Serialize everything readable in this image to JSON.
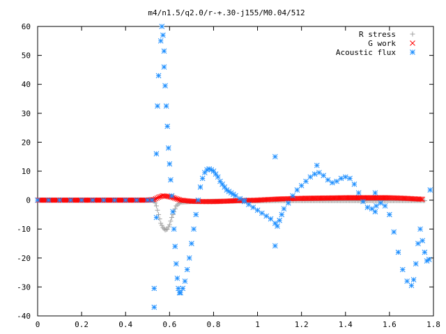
{
  "chart_data": {
    "type": "scatter",
    "title": "m4/n1.5/q2.0/r-+.30-j155/M0.04/512",
    "xlabel": "",
    "ylabel": "",
    "xlim": [
      0,
      1.8
    ],
    "ylim": [
      -40,
      60
    ],
    "xticks": [
      "0",
      "0.2",
      "0.4",
      "0.6",
      "0.8",
      "1",
      "1.2",
      "1.4",
      "1.6",
      "1.8"
    ],
    "yticks": [
      "-40",
      "-30",
      "-20",
      "-10",
      "0",
      "10",
      "20",
      "30",
      "40",
      "50",
      "60"
    ],
    "grid": false,
    "legend_position": "top-right",
    "series": [
      {
        "name": "R stress",
        "marker": "plus",
        "color": "#a0a0a0",
        "points": [
          [
            0.0,
            0
          ],
          [
            0.1,
            0
          ],
          [
            0.2,
            0
          ],
          [
            0.3,
            0
          ],
          [
            0.4,
            0
          ],
          [
            0.5,
            0
          ],
          [
            0.53,
            0
          ],
          [
            0.54,
            -2
          ],
          [
            0.55,
            -5
          ],
          [
            0.56,
            -8
          ],
          [
            0.57,
            -9.5
          ],
          [
            0.58,
            -10.3
          ],
          [
            0.59,
            -10
          ],
          [
            0.6,
            -8.5
          ],
          [
            0.61,
            -6
          ],
          [
            0.62,
            -4
          ],
          [
            0.63,
            -2
          ],
          [
            0.65,
            -0.8
          ],
          [
            0.7,
            -0.5
          ],
          [
            0.8,
            -0.4
          ],
          [
            0.9,
            -0.3
          ],
          [
            1.0,
            -0.3
          ],
          [
            1.1,
            -0.2
          ],
          [
            1.2,
            -0.2
          ],
          [
            1.3,
            -0.2
          ],
          [
            1.4,
            -0.2
          ],
          [
            1.5,
            -0.2
          ],
          [
            1.6,
            -0.2
          ],
          [
            1.7,
            -0.2
          ],
          [
            1.76,
            -0.2
          ]
        ]
      },
      {
        "name": "G work",
        "marker": "cross",
        "color": "#ff0000",
        "points": [
          [
            0.0,
            0
          ],
          [
            0.1,
            0
          ],
          [
            0.2,
            0
          ],
          [
            0.3,
            0
          ],
          [
            0.4,
            0
          ],
          [
            0.5,
            0
          ],
          [
            0.53,
            0.2
          ],
          [
            0.55,
            1
          ],
          [
            0.57,
            1.5
          ],
          [
            0.59,
            1.3
          ],
          [
            0.61,
            1
          ],
          [
            0.63,
            0.5
          ],
          [
            0.65,
            0
          ],
          [
            0.7,
            -0.4
          ],
          [
            0.75,
            -0.5
          ],
          [
            0.8,
            -0.5
          ],
          [
            0.85,
            -0.4
          ],
          [
            0.9,
            -0.2
          ],
          [
            0.95,
            -0.1
          ],
          [
            1.0,
            0
          ],
          [
            1.05,
            0.2
          ],
          [
            1.1,
            0.4
          ],
          [
            1.15,
            0.5
          ],
          [
            1.2,
            0.6
          ],
          [
            1.3,
            0.7
          ],
          [
            1.4,
            0.8
          ],
          [
            1.5,
            0.8
          ],
          [
            1.6,
            0.8
          ],
          [
            1.65,
            0.7
          ],
          [
            1.7,
            0.5
          ],
          [
            1.75,
            0.3
          ]
        ]
      },
      {
        "name": "Acoustic flux",
        "marker": "star",
        "color": "#1e8fff",
        "points": [
          [
            0.0,
            0
          ],
          [
            0.05,
            0
          ],
          [
            0.1,
            0
          ],
          [
            0.15,
            0
          ],
          [
            0.2,
            0
          ],
          [
            0.25,
            0
          ],
          [
            0.3,
            0
          ],
          [
            0.35,
            0
          ],
          [
            0.4,
            0
          ],
          [
            0.45,
            0
          ],
          [
            0.5,
            0
          ],
          [
            0.52,
            0
          ],
          [
            0.53,
            -30.5
          ],
          [
            0.53,
            -37
          ],
          [
            0.54,
            -6
          ],
          [
            0.54,
            16
          ],
          [
            0.545,
            32.5
          ],
          [
            0.55,
            43
          ],
          [
            0.56,
            55
          ],
          [
            0.565,
            60
          ],
          [
            0.57,
            57
          ],
          [
            0.575,
            51.5
          ],
          [
            0.575,
            46
          ],
          [
            0.58,
            39.5
          ],
          [
            0.585,
            32.5
          ],
          [
            0.59,
            25.5
          ],
          [
            0.595,
            18
          ],
          [
            0.6,
            12.5
          ],
          [
            0.605,
            7
          ],
          [
            0.61,
            1.5
          ],
          [
            0.615,
            -4
          ],
          [
            0.62,
            -10
          ],
          [
            0.625,
            -16
          ],
          [
            0.63,
            -22
          ],
          [
            0.635,
            -27
          ],
          [
            0.64,
            -30.5
          ],
          [
            0.645,
            -32
          ],
          [
            0.65,
            -32
          ],
          [
            0.66,
            -30.5
          ],
          [
            0.67,
            -28
          ],
          [
            0.68,
            -24
          ],
          [
            0.69,
            -20
          ],
          [
            0.7,
            -15
          ],
          [
            0.71,
            -10
          ],
          [
            0.72,
            -5
          ],
          [
            0.73,
            0
          ],
          [
            0.74,
            4.5
          ],
          [
            0.75,
            7.5
          ],
          [
            0.76,
            9.5
          ],
          [
            0.77,
            10.5
          ],
          [
            0.78,
            10.8
          ],
          [
            0.79,
            10.5
          ],
          [
            0.8,
            10
          ],
          [
            0.81,
            9
          ],
          [
            0.82,
            8
          ],
          [
            0.83,
            6.5
          ],
          [
            0.84,
            5.5
          ],
          [
            0.85,
            4.5
          ],
          [
            0.86,
            3.5
          ],
          [
            0.87,
            3
          ],
          [
            0.88,
            2.5
          ],
          [
            0.89,
            2
          ],
          [
            0.9,
            1.5
          ],
          [
            0.92,
            0.5
          ],
          [
            0.94,
            -0.5
          ],
          [
            0.96,
            -1.5
          ],
          [
            0.98,
            -2.5
          ],
          [
            1.0,
            -3.5
          ],
          [
            1.02,
            -4.5
          ],
          [
            1.04,
            -5.5
          ],
          [
            1.06,
            -6.5
          ],
          [
            1.08,
            -8
          ],
          [
            1.09,
            -9
          ],
          [
            1.1,
            -7
          ],
          [
            1.11,
            -5
          ],
          [
            1.12,
            -3
          ],
          [
            1.14,
            -1
          ],
          [
            1.16,
            1.5
          ],
          [
            1.18,
            3.5
          ],
          [
            1.2,
            5
          ],
          [
            1.22,
            6.5
          ],
          [
            1.24,
            8
          ],
          [
            1.26,
            9
          ],
          [
            1.28,
            9.5
          ],
          [
            1.3,
            8.5
          ],
          [
            1.32,
            7
          ],
          [
            1.34,
            6
          ],
          [
            1.36,
            6.5
          ],
          [
            1.38,
            7.5
          ],
          [
            1.4,
            8
          ],
          [
            1.42,
            7.5
          ],
          [
            1.44,
            5.5
          ],
          [
            1.46,
            2.5
          ],
          [
            1.48,
            -0.5
          ],
          [
            1.5,
            -2.5
          ],
          [
            1.52,
            -3
          ],
          [
            1.54,
            -2
          ],
          [
            1.56,
            -1
          ],
          [
            1.58,
            -2
          ],
          [
            1.6,
            -5
          ],
          [
            1.62,
            -11
          ],
          [
            1.64,
            -18
          ],
          [
            1.66,
            -24
          ],
          [
            1.68,
            -28
          ],
          [
            1.7,
            -29.5
          ],
          [
            1.71,
            -27.5
          ],
          [
            1.72,
            -22
          ],
          [
            1.73,
            -15
          ],
          [
            1.74,
            -10
          ],
          [
            1.75,
            -14
          ],
          [
            1.76,
            -18
          ],
          [
            1.77,
            -21
          ],
          [
            1.78,
            -20.5
          ],
          [
            1.785,
            3.5
          ],
          [
            0.94,
            0
          ],
          [
            1.08,
            15
          ],
          [
            1.08,
            -15.8
          ],
          [
            1.27,
            12
          ],
          [
            1.535,
            2.5
          ],
          [
            1.535,
            -4
          ]
        ]
      }
    ]
  }
}
